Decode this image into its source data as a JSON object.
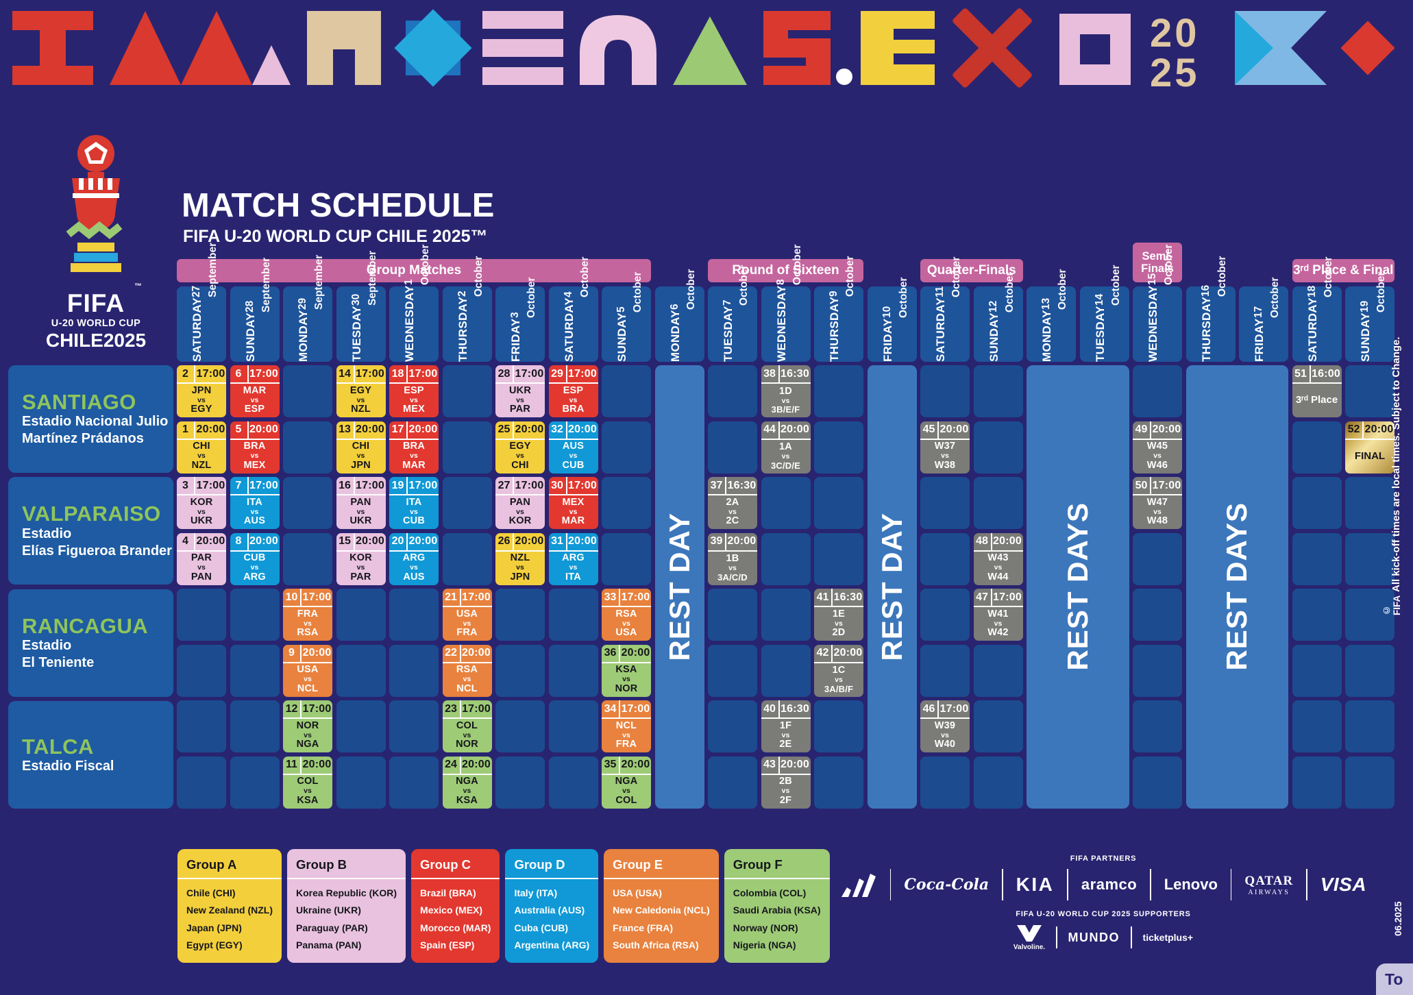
{
  "meta": {
    "title": "MATCH SCHEDULE",
    "subtitle": "FIFA U-20 WORLD CUP CHILE 2025™"
  },
  "logo": {
    "line1": "FIFA",
    "line2": "U-20 WORLD CUP",
    "line3": "CHILE2025",
    "tm": "™"
  },
  "banner": {
    "year_top": "20",
    "year_bottom": "25"
  },
  "side_notes": {
    "kickoff": "All kick-off times are local times. Subject to Change.",
    "copyright": "© FIFA",
    "edition": "06.2025",
    "corner_label": "To"
  },
  "phases": [
    {
      "label": "Group Matches",
      "start": 0,
      "span": 9
    },
    {
      "label": "Round of Sixteen",
      "start": 10,
      "span": 3
    },
    {
      "label": "Quarter-Finals",
      "start": 14,
      "span": 2
    },
    {
      "label": "Semi-Finals",
      "start": 18,
      "span": 1,
      "small": true
    },
    {
      "label": "3ʳᵈ Place & Final",
      "start": 21,
      "span": 2
    }
  ],
  "days": [
    {
      "dow": "SATURDAY",
      "date": "27 September"
    },
    {
      "dow": "SUNDAY",
      "date": "28 September"
    },
    {
      "dow": "MONDAY",
      "date": "29 September"
    },
    {
      "dow": "TUESDAY",
      "date": "30 September"
    },
    {
      "dow": "WEDNESDAY",
      "date": "1 October"
    },
    {
      "dow": "THURSDAY",
      "date": "2 October"
    },
    {
      "dow": "FRIDAY",
      "date": "3 October"
    },
    {
      "dow": "SATURDAY",
      "date": "4 October"
    },
    {
      "dow": "SUNDAY",
      "date": "5 October"
    },
    {
      "dow": "MONDAY",
      "date": "6 October"
    },
    {
      "dow": "TUESDAY",
      "date": "7 October"
    },
    {
      "dow": "WEDNESDAY",
      "date": "8 October"
    },
    {
      "dow": "THURSDAY",
      "date": "9 October"
    },
    {
      "dow": "FRIDAY",
      "date": "10 October"
    },
    {
      "dow": "SATURDAY",
      "date": "11 October"
    },
    {
      "dow": "SUNDAY",
      "date": "12 October"
    },
    {
      "dow": "MONDAY",
      "date": "13 October"
    },
    {
      "dow": "TUESDAY",
      "date": "14 October"
    },
    {
      "dow": "WEDNESDAY",
      "date": "15 October"
    },
    {
      "dow": "THURSDAY",
      "date": "16 October"
    },
    {
      "dow": "FRIDAY",
      "date": "17 October"
    },
    {
      "dow": "SATURDAY",
      "date": "18 October"
    },
    {
      "dow": "SUNDAY",
      "date": "19 October"
    }
  ],
  "venues": [
    {
      "city": "SANTIAGO",
      "stadium": [
        "Estadio Nacional Julio",
        "Martínez Prádanos"
      ]
    },
    {
      "city": "VALPARAISO",
      "stadium": [
        "Estadio",
        "Elías Figueroa Brander"
      ]
    },
    {
      "city": "RANCAGUA",
      "stadium": [
        "Estadio",
        "El Teniente"
      ]
    },
    {
      "city": "TALCA",
      "stadium": [
        "Estadio Fiscal"
      ]
    }
  ],
  "rest_blocks": [
    {
      "day": 9,
      "span": 1,
      "label": "REST DAY"
    },
    {
      "day": 13,
      "span": 1,
      "label": "REST DAY"
    },
    {
      "day": 16,
      "span": 2,
      "label": "REST DAYS"
    },
    {
      "day": 19,
      "span": 2,
      "label": "REST DAYS"
    }
  ],
  "matches": [
    {
      "n": 2,
      "t": "17:00",
      "h": "JPN",
      "a": "EGY",
      "g": "A",
      "d": 0,
      "v": 0,
      "r": 0
    },
    {
      "n": 1,
      "t": "20:00",
      "h": "CHI",
      "a": "NZL",
      "g": "A",
      "d": 0,
      "v": 0,
      "r": 1
    },
    {
      "n": 3,
      "t": "17:00",
      "h": "KOR",
      "a": "UKR",
      "g": "B",
      "d": 0,
      "v": 1,
      "r": 0
    },
    {
      "n": 4,
      "t": "20:00",
      "h": "PAR",
      "a": "PAN",
      "g": "B",
      "d": 0,
      "v": 1,
      "r": 1
    },
    {
      "n": 6,
      "t": "17:00",
      "h": "MAR",
      "a": "ESP",
      "g": "C",
      "d": 1,
      "v": 0,
      "r": 0
    },
    {
      "n": 5,
      "t": "20:00",
      "h": "BRA",
      "a": "MEX",
      "g": "C",
      "d": 1,
      "v": 0,
      "r": 1
    },
    {
      "n": 7,
      "t": "17:00",
      "h": "ITA",
      "a": "AUS",
      "g": "D",
      "d": 1,
      "v": 1,
      "r": 0
    },
    {
      "n": 8,
      "t": "20:00",
      "h": "CUB",
      "a": "ARG",
      "g": "D",
      "d": 1,
      "v": 1,
      "r": 1
    },
    {
      "n": 10,
      "t": "17:00",
      "h": "FRA",
      "a": "RSA",
      "g": "E",
      "d": 2,
      "v": 2,
      "r": 0
    },
    {
      "n": 9,
      "t": "20:00",
      "h": "USA",
      "a": "NCL",
      "g": "E",
      "d": 2,
      "v": 2,
      "r": 1
    },
    {
      "n": 12,
      "t": "17:00",
      "h": "NOR",
      "a": "NGA",
      "g": "F",
      "d": 2,
      "v": 3,
      "r": 0
    },
    {
      "n": 11,
      "t": "20:00",
      "h": "COL",
      "a": "KSA",
      "g": "F",
      "d": 2,
      "v": 3,
      "r": 1
    },
    {
      "n": 14,
      "t": "17:00",
      "h": "EGY",
      "a": "NZL",
      "g": "A",
      "d": 3,
      "v": 0,
      "r": 0
    },
    {
      "n": 13,
      "t": "20:00",
      "h": "CHI",
      "a": "JPN",
      "g": "A",
      "d": 3,
      "v": 0,
      "r": 1
    },
    {
      "n": 16,
      "t": "17:00",
      "h": "PAN",
      "a": "UKR",
      "g": "B",
      "d": 3,
      "v": 1,
      "r": 0
    },
    {
      "n": 15,
      "t": "20:00",
      "h": "KOR",
      "a": "PAR",
      "g": "B",
      "d": 3,
      "v": 1,
      "r": 1
    },
    {
      "n": 18,
      "t": "17:00",
      "h": "ESP",
      "a": "MEX",
      "g": "C",
      "d": 4,
      "v": 0,
      "r": 0
    },
    {
      "n": 17,
      "t": "20:00",
      "h": "BRA",
      "a": "MAR",
      "g": "C",
      "d": 4,
      "v": 0,
      "r": 1
    },
    {
      "n": 19,
      "t": "17:00",
      "h": "ITA",
      "a": "CUB",
      "g": "D",
      "d": 4,
      "v": 1,
      "r": 0
    },
    {
      "n": 20,
      "t": "20:00",
      "h": "ARG",
      "a": "AUS",
      "g": "D",
      "d": 4,
      "v": 1,
      "r": 1
    },
    {
      "n": 21,
      "t": "17:00",
      "h": "USA",
      "a": "FRA",
      "g": "E",
      "d": 5,
      "v": 2,
      "r": 0
    },
    {
      "n": 22,
      "t": "20:00",
      "h": "RSA",
      "a": "NCL",
      "g": "E",
      "d": 5,
      "v": 2,
      "r": 1
    },
    {
      "n": 23,
      "t": "17:00",
      "h": "COL",
      "a": "NOR",
      "g": "F",
      "d": 5,
      "v": 3,
      "r": 0
    },
    {
      "n": 24,
      "t": "20:00",
      "h": "NGA",
      "a": "KSA",
      "g": "F",
      "d": 5,
      "v": 3,
      "r": 1
    },
    {
      "n": 28,
      "t": "17:00",
      "h": "UKR",
      "a": "PAR",
      "g": "B",
      "d": 6,
      "v": 0,
      "r": 0
    },
    {
      "n": 25,
      "t": "20:00",
      "h": "EGY",
      "a": "CHI",
      "g": "A",
      "d": 6,
      "v": 0,
      "r": 1
    },
    {
      "n": 27,
      "t": "17:00",
      "h": "PAN",
      "a": "KOR",
      "g": "B",
      "d": 6,
      "v": 1,
      "r": 0
    },
    {
      "n": 26,
      "t": "20:00",
      "h": "NZL",
      "a": "JPN",
      "g": "A",
      "d": 6,
      "v": 1,
      "r": 1
    },
    {
      "n": 29,
      "t": "17:00",
      "h": "ESP",
      "a": "BRA",
      "g": "C",
      "d": 7,
      "v": 0,
      "r": 0
    },
    {
      "n": 32,
      "t": "20:00",
      "h": "AUS",
      "a": "CUB",
      "g": "D",
      "d": 7,
      "v": 0,
      "r": 1
    },
    {
      "n": 30,
      "t": "17:00",
      "h": "MEX",
      "a": "MAR",
      "g": "C",
      "d": 7,
      "v": 1,
      "r": 0
    },
    {
      "n": 31,
      "t": "20:00",
      "h": "ARG",
      "a": "ITA",
      "g": "D",
      "d": 7,
      "v": 1,
      "r": 1
    },
    {
      "n": 33,
      "t": "17:00",
      "h": "RSA",
      "a": "USA",
      "g": "E",
      "d": 8,
      "v": 2,
      "r": 0
    },
    {
      "n": 36,
      "t": "20:00",
      "h": "KSA",
      "a": "NOR",
      "g": "F",
      "d": 8,
      "v": 2,
      "r": 1
    },
    {
      "n": 34,
      "t": "17:00",
      "h": "NCL",
      "a": "FRA",
      "g": "E",
      "d": 8,
      "v": 3,
      "r": 0
    },
    {
      "n": 35,
      "t": "20:00",
      "h": "NGA",
      "a": "COL",
      "g": "F",
      "d": 8,
      "v": 3,
      "r": 1
    },
    {
      "n": 37,
      "t": "16:30",
      "h": "2A",
      "a": "2C",
      "g": "KO",
      "d": 10,
      "v": 1,
      "r": 0
    },
    {
      "n": 39,
      "t": "20:00",
      "h": "1B",
      "a": "3A/C/D",
      "g": "KO",
      "d": 10,
      "v": 1,
      "r": 1
    },
    {
      "n": 38,
      "t": "16:30",
      "h": "1D",
      "a": "3B/E/F",
      "g": "KO",
      "d": 11,
      "v": 0,
      "r": 0
    },
    {
      "n": 44,
      "t": "20:00",
      "h": "1A",
      "a": "3C/D/E",
      "g": "KO",
      "d": 11,
      "v": 0,
      "r": 1
    },
    {
      "n": 40,
      "t": "16:30",
      "h": "1F",
      "a": "2E",
      "g": "KO",
      "d": 11,
      "v": 3,
      "r": 0
    },
    {
      "n": 43,
      "t": "20:00",
      "h": "2B",
      "a": "2F",
      "g": "KO",
      "d": 11,
      "v": 3,
      "r": 1
    },
    {
      "n": 41,
      "t": "16:30",
      "h": "1E",
      "a": "2D",
      "g": "KO",
      "d": 12,
      "v": 2,
      "r": 0
    },
    {
      "n": 42,
      "t": "20:00",
      "h": "1C",
      "a": "3A/B/F",
      "g": "KO",
      "d": 12,
      "v": 2,
      "r": 1
    },
    {
      "n": 45,
      "t": "20:00",
      "h": "W37",
      "a": "W38",
      "g": "KO",
      "d": 14,
      "v": 0,
      "r": 1
    },
    {
      "n": 46,
      "t": "17:00",
      "h": "W39",
      "a": "W40",
      "g": "KO",
      "d": 14,
      "v": 3,
      "r": 0
    },
    {
      "n": 47,
      "t": "17:00",
      "h": "W41",
      "a": "W42",
      "g": "KO",
      "d": 15,
      "v": 2,
      "r": 0
    },
    {
      "n": 48,
      "t": "20:00",
      "h": "W43",
      "a": "W44",
      "g": "KO",
      "d": 15,
      "v": 1,
      "r": 1
    },
    {
      "n": 49,
      "t": "20:00",
      "h": "W45",
      "a": "W46",
      "g": "KO",
      "d": 18,
      "v": 0,
      "r": 1
    },
    {
      "n": 50,
      "t": "17:00",
      "h": "W47",
      "a": "W48",
      "g": "KO",
      "d": 18,
      "v": 1,
      "r": 0
    },
    {
      "n": 51,
      "t": "16:00",
      "label": "3ʳᵈ Place",
      "g": "KO",
      "d": 21,
      "v": 0,
      "r": 0
    },
    {
      "n": 52,
      "t": "20:00",
      "label": "FINAL",
      "g": "FINAL",
      "d": 22,
      "v": 0,
      "r": 1
    }
  ],
  "groups_legend": [
    {
      "name": "Group A",
      "g": "A",
      "teams": [
        "Chile (CHI)",
        "New Zealand (NZL)",
        "Japan (JPN)",
        "Egypt (EGY)"
      ]
    },
    {
      "name": "Group B",
      "g": "B",
      "teams": [
        "Korea Republic (KOR)",
        "Ukraine (UKR)",
        "Paraguay (PAR)",
        "Panama (PAN)"
      ]
    },
    {
      "name": "Group C",
      "g": "C",
      "teams": [
        "Brazil (BRA)",
        "Mexico (MEX)",
        "Morocco (MAR)",
        "Spain (ESP)"
      ]
    },
    {
      "name": "Group D",
      "g": "D",
      "teams": [
        "Italy (ITA)",
        "Australia (AUS)",
        "Cuba (CUB)",
        "Argentina (ARG)"
      ]
    },
    {
      "name": "Group E",
      "g": "E",
      "teams": [
        "USA (USA)",
        "New Caledonia (NCL)",
        "France (FRA)",
        "South Africa (RSA)"
      ]
    },
    {
      "name": "Group F",
      "g": "F",
      "teams": [
        "Colombia (COL)",
        "Saudi Arabia (KSA)",
        "Norway (NOR)",
        "Nigeria (NGA)"
      ]
    }
  ],
  "colors": {
    "A": {
      "bg": "#F3CF3C",
      "fg": "#15161B"
    },
    "B": {
      "bg": "#E9C2DF",
      "fg": "#15161B"
    },
    "C": {
      "bg": "#E2382F",
      "fg": "#FFFFFF"
    },
    "D": {
      "bg": "#1099D6",
      "fg": "#FFFFFF"
    },
    "E": {
      "bg": "#E8823E",
      "fg": "#FFFFFF"
    },
    "F": {
      "bg": "#9ECB76",
      "fg": "#15161B"
    },
    "KO": {
      "bg": "#7B7B78",
      "fg": "#FFFFFF"
    },
    "FINAL": {
      "bg": "gold-gradient",
      "fg": "#15161B"
    }
  },
  "ui_colors": {
    "page": "#292470",
    "empty_cell": "#1C4B90",
    "date_cell": "#1E549A",
    "venue_card": "#1E5BA2",
    "rest_block": "#3C77BC",
    "phase_bar": "#C4659E",
    "city_green": "#8FC45C"
  },
  "sponsors": {
    "partners_label": "FIFA PARTNERS",
    "partners": [
      "adidas",
      "Coca-Cola",
      "KIA",
      "aramco",
      "Lenovo",
      "QATAR AIRWAYS",
      "VISA"
    ],
    "supporters_label": "FIFA U-20 WORLD CUP 2025 SUPPORTERS",
    "supporters": [
      "Valvoline.",
      "MUNDO",
      "ticketplus+"
    ]
  }
}
